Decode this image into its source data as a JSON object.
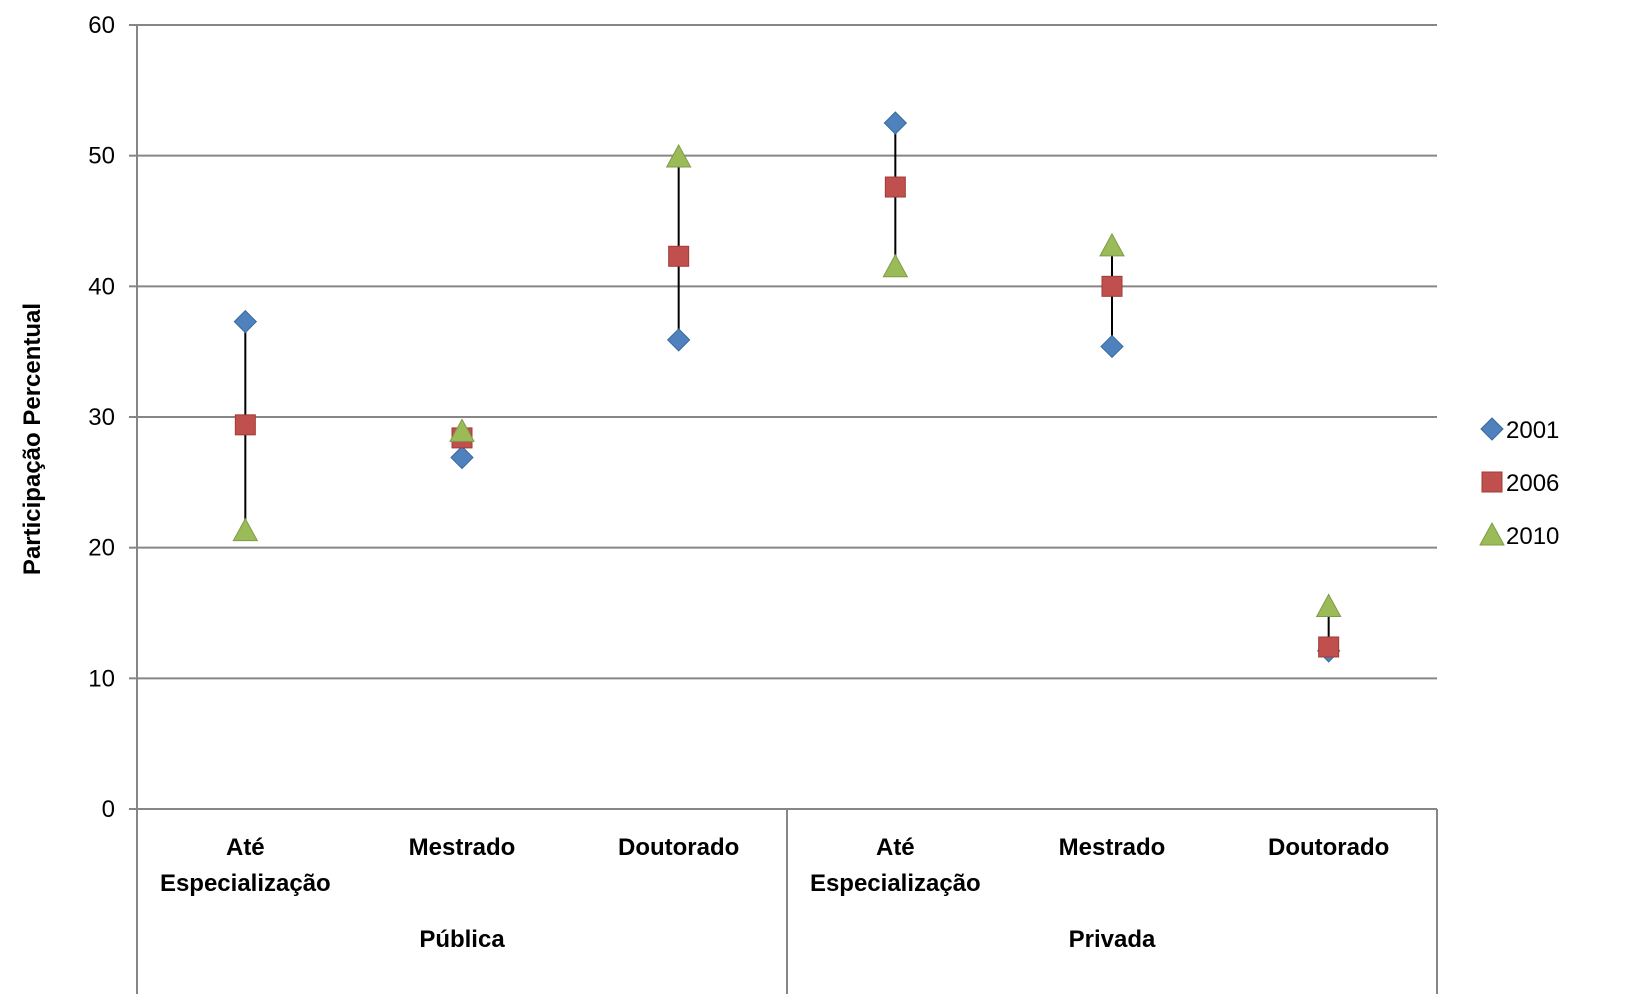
{
  "chart_data": {
    "type": "scatter",
    "title": "",
    "xlabel": "",
    "ylabel": "Participação Percentual",
    "ylim": [
      0,
      60
    ],
    "y_ticks": [
      "0",
      "10",
      "20",
      "30",
      "40",
      "50",
      "60"
    ],
    "grid": true,
    "legend_position": "right",
    "high_low_lines": true,
    "groups": [
      {
        "name": "Pública",
        "categories": [
          [
            "Até",
            "Especialização"
          ],
          [
            "Mestrado"
          ],
          [
            "Doutorado"
          ]
        ]
      },
      {
        "name": "Privada",
        "categories": [
          [
            "Até",
            "Especialização"
          ],
          [
            "Mestrado"
          ],
          [
            "Doutorado"
          ]
        ]
      }
    ],
    "series": [
      {
        "name": "2001",
        "marker": "diamond",
        "color": "#4F81BD",
        "values": [
          37.3,
          26.9,
          35.9,
          52.5,
          35.4,
          12.1
        ]
      },
      {
        "name": "2006",
        "marker": "square",
        "color": "#C0504D",
        "values": [
          29.4,
          28.4,
          42.3,
          47.6,
          40.0,
          12.4
        ]
      },
      {
        "name": "2010",
        "marker": "triangle",
        "color": "#9BBB59",
        "values": [
          21.3,
          28.9,
          49.9,
          41.5,
          43.1,
          15.5
        ]
      }
    ]
  }
}
